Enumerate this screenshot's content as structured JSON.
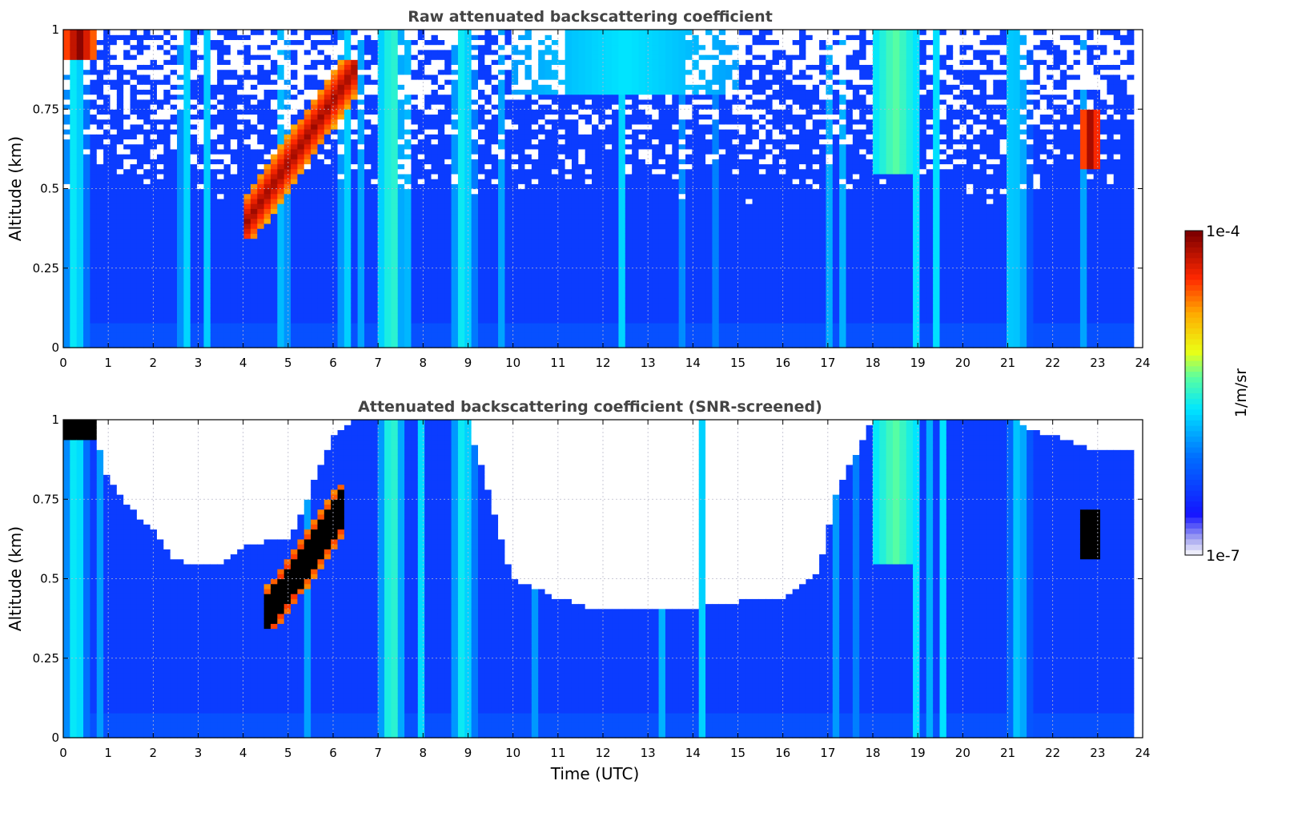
{
  "chart_data": [
    {
      "type": "heatmap",
      "title": "Raw attenuated backscattering coefficient",
      "xlabel": "",
      "ylabel": "Altitude (km)",
      "xlim": [
        0,
        24
      ],
      "ylim": [
        0,
        1
      ],
      "x_ticks": [
        "0",
        "1",
        "2",
        "3",
        "4",
        "5",
        "6",
        "7",
        "8",
        "9",
        "10",
        "11",
        "12",
        "13",
        "14",
        "15",
        "16",
        "17",
        "18",
        "19",
        "20",
        "21",
        "22",
        "23",
        "24"
      ],
      "y_ticks": [
        "0",
        "0.25",
        "0.5",
        "0.75",
        "1"
      ],
      "grid": true,
      "data_extent_hours": [
        0,
        23.8
      ],
      "color_scale": "log",
      "background_level": 0.2,
      "features": [
        {
          "name": "boundary-layer-base",
          "t_range": [
            0,
            23.8
          ],
          "alt_range": [
            0,
            0.45
          ],
          "level": 0.22
        },
        {
          "name": "cloud-0h",
          "t_range": [
            0.0,
            0.7
          ],
          "alt_range": [
            0.9,
            1.0
          ],
          "level": 1.0
        },
        {
          "name": "plume-0h",
          "t_range": [
            0.0,
            0.55
          ],
          "alt_range": [
            0.0,
            1.0
          ],
          "level": 0.5
        },
        {
          "name": "rising-cloud-layer",
          "t_range": [
            4.0,
            6.5
          ],
          "alt_range": [
            0.35,
            0.9
          ],
          "level": 0.97
        },
        {
          "name": "plume-7h",
          "t_range": [
            7.0,
            7.6
          ],
          "alt_range": [
            0.0,
            1.0
          ],
          "level": 0.55
        },
        {
          "name": "plume-9h",
          "t_range": [
            8.6,
            9.2
          ],
          "alt_range": [
            0.0,
            1.0
          ],
          "level": 0.5
        },
        {
          "name": "high-aerosol-10-15h",
          "t_range": [
            10.0,
            15.0
          ],
          "alt_range": [
            0.8,
            1.0
          ],
          "level": 0.45
        },
        {
          "name": "plume-18h",
          "t_range": [
            18.0,
            19.0
          ],
          "alt_range": [
            0.55,
            1.0
          ],
          "level": 0.55
        },
        {
          "name": "plume-21h",
          "t_range": [
            21.0,
            21.5
          ],
          "alt_range": [
            0.0,
            1.0
          ],
          "level": 0.45
        },
        {
          "name": "cloud-23h",
          "t_range": [
            22.6,
            23.1
          ],
          "alt_range": [
            0.57,
            0.75
          ],
          "level": 0.97
        }
      ]
    },
    {
      "type": "heatmap",
      "title": "Attenuated backscattering coefficient (SNR-screened)",
      "xlabel": "Time (UTC)",
      "ylabel": "Altitude (km)",
      "xlim": [
        0,
        24
      ],
      "ylim": [
        0,
        1
      ],
      "x_ticks": [
        "0",
        "1",
        "2",
        "3",
        "4",
        "5",
        "6",
        "7",
        "8",
        "9",
        "10",
        "11",
        "12",
        "13",
        "14",
        "15",
        "16",
        "17",
        "18",
        "19",
        "20",
        "21",
        "22",
        "23",
        "24"
      ],
      "y_ticks": [
        "0",
        "0.25",
        "0.5",
        "0.75",
        "1"
      ],
      "grid": true,
      "data_extent_hours": [
        0,
        23.8
      ],
      "color_scale": "log",
      "screened_color": "#ffffff",
      "saturated_color": "#000000",
      "screen_top_km": [
        [
          0.0,
          1.0
        ],
        [
          0.7,
          0.95
        ],
        [
          1.0,
          0.82
        ],
        [
          1.5,
          0.72
        ],
        [
          2.0,
          0.65
        ],
        [
          2.5,
          0.56
        ],
        [
          3.0,
          0.54
        ],
        [
          3.5,
          0.54
        ],
        [
          4.0,
          0.6
        ],
        [
          4.5,
          0.62
        ],
        [
          5.0,
          0.62
        ],
        [
          5.5,
          0.78
        ],
        [
          6.0,
          0.95
        ],
        [
          6.5,
          1.0
        ],
        [
          7.0,
          1.0
        ],
        [
          8.0,
          1.0
        ],
        [
          9.0,
          1.0
        ],
        [
          9.5,
          0.75
        ],
        [
          10.0,
          0.5
        ],
        [
          11.0,
          0.44
        ],
        [
          12.0,
          0.4
        ],
        [
          13.0,
          0.4
        ],
        [
          14.0,
          0.41
        ],
        [
          15.0,
          0.43
        ],
        [
          16.0,
          0.44
        ],
        [
          16.8,
          0.52
        ],
        [
          17.2,
          0.78
        ],
        [
          18.0,
          1.0
        ],
        [
          19.0,
          1.0
        ],
        [
          20.0,
          1.0
        ],
        [
          21.0,
          1.0
        ],
        [
          22.0,
          0.95
        ],
        [
          23.0,
          0.9
        ],
        [
          23.8,
          0.9
        ]
      ],
      "features": [
        {
          "name": "cloud-0h",
          "t_range": [
            0.0,
            0.7
          ],
          "alt_range": [
            0.93,
            1.0
          ],
          "level": 1.0
        },
        {
          "name": "plume-0h",
          "t_range": [
            0.0,
            0.55
          ],
          "alt_range": [
            0.0,
            1.0
          ],
          "level": 0.5
        },
        {
          "name": "rising-cloud-layer",
          "t_range": [
            4.5,
            6.3
          ],
          "alt_range": [
            0.35,
            0.8
          ],
          "level": 1.0
        },
        {
          "name": "plume-7h",
          "t_range": [
            7.0,
            7.6
          ],
          "alt_range": [
            0.0,
            1.0
          ],
          "level": 0.55
        },
        {
          "name": "plume-9h",
          "t_range": [
            8.6,
            9.2
          ],
          "alt_range": [
            0.0,
            1.0
          ],
          "level": 0.5
        },
        {
          "name": "plume-18h",
          "t_range": [
            18.0,
            19.0
          ],
          "alt_range": [
            0.55,
            1.0
          ],
          "level": 0.55
        },
        {
          "name": "plume-21h",
          "t_range": [
            21.0,
            21.5
          ],
          "alt_range": [
            0.0,
            1.0
          ],
          "level": 0.45
        },
        {
          "name": "cloud-23h",
          "t_range": [
            22.6,
            23.1
          ],
          "alt_range": [
            0.57,
            0.72
          ],
          "level": 1.0
        }
      ]
    }
  ],
  "colorbar": {
    "label": "1/m/sr",
    "min_label": "1e-7",
    "max_label": "1e-4",
    "stops": [
      "#e8e8f8",
      "#0000ff",
      "#00ffff",
      "#ffff00",
      "#ff0000",
      "#800000"
    ]
  }
}
